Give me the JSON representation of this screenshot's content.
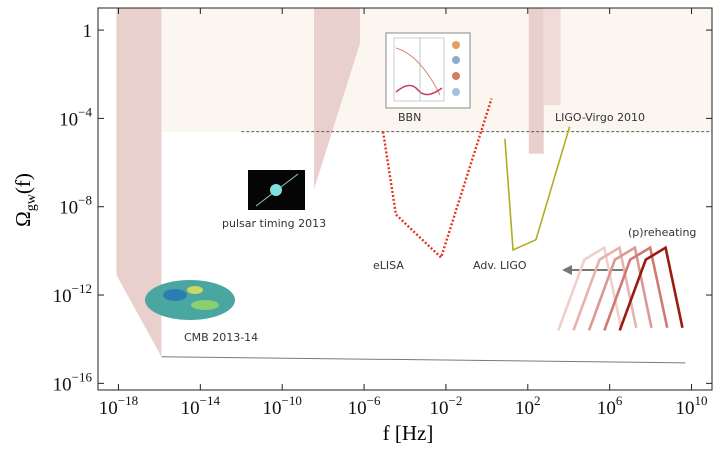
{
  "chart_data": {
    "type": "line",
    "xscale": "log",
    "yscale": "log",
    "xlabel": "f [Hz]",
    "ylabel": "Ωgw(f)",
    "xlim": [
      1e-19,
      100000000000.0
    ],
    "ylim": [
      5e-17,
      10
    ],
    "xticks": [
      {
        "value": 1e-18,
        "label": "10−18"
      },
      {
        "value": 1e-14,
        "label": "10−14"
      },
      {
        "value": 1e-10,
        "label": "10−10"
      },
      {
        "value": 1e-06,
        "label": "10−6"
      },
      {
        "value": 0.01,
        "label": "10−2"
      },
      {
        "value": 100,
        "label": "102"
      },
      {
        "value": 1000000,
        "label": "106"
      },
      {
        "value": 10000000000,
        "label": "1010"
      }
    ],
    "yticks": [
      1,
      {
        "value": 0.0001,
        "label": "10−4"
      },
      {
        "value": 1e-08,
        "label": "10−8"
      },
      {
        "value": 1e-12,
        "label": "10−12"
      },
      {
        "value": 1e-16,
        "label": "10−16"
      }
    ],
    "regions": [
      {
        "x": [
          1e-18,
          1e-18,
          100000000000.0,
          100000000000.0
        ],
        "y": [
          10,
          2.5e-05,
          2.5e-05,
          10
        ],
        "color": "#fbf6ee"
      },
      {
        "x": [
          8e-19,
          8e-19,
          1.26e-16,
          1.26e-16
        ],
        "y": [
          10,
          8e-12,
          1.6e-15,
          10
        ],
        "color": "#e9cdca"
      },
      {
        "x": [
          3.6e-09,
          3.6e-09,
          6.3e-07,
          6.3e-07
        ],
        "y": [
          10,
          6.3e-08,
          0.25,
          10
        ],
        "color": "#e9cdca"
      },
      {
        "x": [
          112,
          112,
          600,
          600
        ],
        "y": [
          10,
          2.5e-06,
          2.5e-06,
          10
        ],
        "color": "#e9cdca"
      },
      {
        "x": [
          600,
          600,
          4000,
          4000
        ],
        "y": [
          10,
          0.0004,
          0.0004,
          10
        ],
        "color": "#efd9d6"
      }
    ],
    "threshold": {
      "x": [
        1e-12,
        100000000000.0
      ],
      "y": [
        2.5e-05,
        2.5e-05
      ]
    },
    "series": [
      {
        "x": [
          1.26e-16,
          5000000000
        ],
        "values": [
          1.6e-15,
          8.5e-16
        ],
        "color": "#7a7a7a"
      },
      {
        "x": [
          8.5e-06,
          3.6e-05,
          0.0058,
          1.7
        ],
        "values": [
          2.5e-05,
          4.4e-09,
          5e-11,
          0.00079
        ],
        "color": "#e8321e",
        "dashed": true
      },
      {
        "x": [
          7.6,
          19,
          250,
          11000
        ],
        "values": [
          1.2e-05,
          1.1e-10,
          3.2e-10,
          4.2e-05
        ],
        "color": "#b2ad1e"
      },
      {
        "x": [
          3100,
          58000,
          540000,
          3600000
        ],
        "values": [
          2.5e-14,
          4e-11,
          1.4e-10,
          3.3e-14
        ],
        "color": "#f0cfcc"
      },
      {
        "x": [
          17000,
          320000,
          3000000,
          20000000
        ],
        "values": [
          2.5e-14,
          4e-11,
          1.4e-10,
          3.3e-14
        ],
        "color": "#e7b3ae"
      },
      {
        "x": [
          98000,
          1800000,
          17000000,
          110000000
        ],
        "values": [
          2.5e-14,
          4e-11,
          1.4e-10,
          3.3e-14
        ],
        "color": "#dc9892"
      },
      {
        "x": [
          550000,
          10000000,
          95000000,
          650000000
        ],
        "values": [
          2.5e-14,
          4e-11,
          1.4e-10,
          3.3e-14
        ],
        "color": "#cf7b73"
      },
      {
        "x": [
          3100000,
          58000000,
          540000000,
          3600000000
        ],
        "values": [
          2.5e-14,
          4e-11,
          1.4e-10,
          3.3e-14
        ],
        "color": "#9b1b10"
      }
    ],
    "annotations": [
      "BBN",
      "LIGO-Virgo 2010",
      "pulsar timing 2013",
      "eLISA",
      "Adv. LIGO",
      "(p)reheating",
      "CMB  2013-14"
    ]
  }
}
